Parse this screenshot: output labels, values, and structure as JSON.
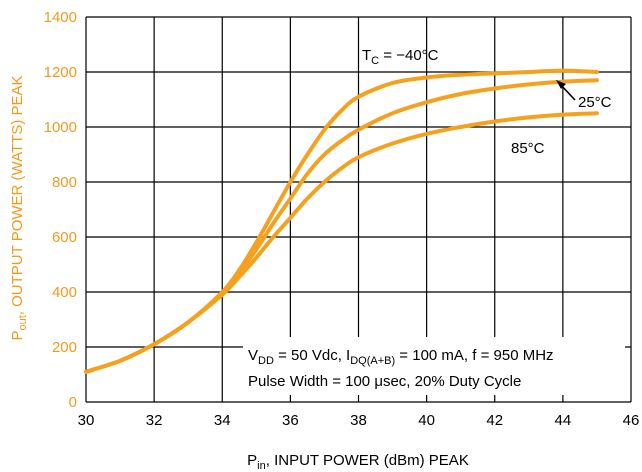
{
  "colors": {
    "curve": "#f5a11e",
    "y_axis_text": "#f39a1e",
    "grid": "#000000",
    "text": "#000000"
  },
  "chart_data": {
    "type": "line",
    "title": "",
    "xlabel": {
      "main": "P",
      "sub": "in",
      "rest": ", INPUT POWER (dBm) PEAK"
    },
    "ylabel": {
      "main": "P",
      "sub": "out",
      "rest": ", OUTPUT POWER (WATTS) PEAK"
    },
    "xlim": [
      30,
      46
    ],
    "ylim": [
      0,
      1400
    ],
    "x_ticks": [
      30,
      32,
      34,
      36,
      38,
      40,
      42,
      44,
      46
    ],
    "y_ticks": [
      0,
      200,
      400,
      600,
      800,
      1000,
      1200,
      1400
    ],
    "grid": true,
    "series": [
      {
        "name": "TC = −40°C",
        "x": [
          30,
          31,
          32,
          33,
          34,
          34.5,
          35,
          35.5,
          36,
          36.5,
          37,
          37.5,
          38,
          39,
          40,
          41,
          42,
          43,
          44,
          45
        ],
        "y": [
          110,
          150,
          210,
          290,
          400,
          480,
          580,
          690,
          800,
          900,
          990,
          1060,
          1110,
          1160,
          1180,
          1190,
          1195,
          1200,
          1205,
          1200
        ]
      },
      {
        "name": "25°C",
        "x": [
          30,
          31,
          32,
          33,
          34,
          34.5,
          35,
          35.5,
          36,
          36.5,
          37,
          37.5,
          38,
          39,
          40,
          41,
          42,
          43,
          44,
          45
        ],
        "y": [
          110,
          150,
          210,
          290,
          395,
          470,
          555,
          650,
          740,
          830,
          900,
          950,
          990,
          1050,
          1090,
          1120,
          1140,
          1155,
          1165,
          1170
        ]
      },
      {
        "name": "85°C",
        "x": [
          30,
          31,
          32,
          33,
          34,
          34.5,
          35,
          35.5,
          36,
          36.5,
          37,
          37.5,
          38,
          39,
          40,
          41,
          42,
          43,
          44,
          45
        ],
        "y": [
          110,
          150,
          210,
          290,
          390,
          455,
          525,
          600,
          670,
          740,
          800,
          850,
          890,
          940,
          975,
          1000,
          1020,
          1035,
          1045,
          1050
        ]
      }
    ],
    "annotations": {
      "tc_label": {
        "main": "T",
        "sub": "C",
        "rest": " = −40°C"
      },
      "label_25": "25°C",
      "label_85": "85°C",
      "conditions_line1": {
        "a": "V",
        "a_sub": "DD",
        "b": " = 50 Vdc, I",
        "b_sub": "DQ(A+B)",
        "c": " = 100 mA, f = 950 MHz"
      },
      "conditions_line2": "Pulse Width = 100 μsec, 20% Duty Cycle"
    }
  }
}
